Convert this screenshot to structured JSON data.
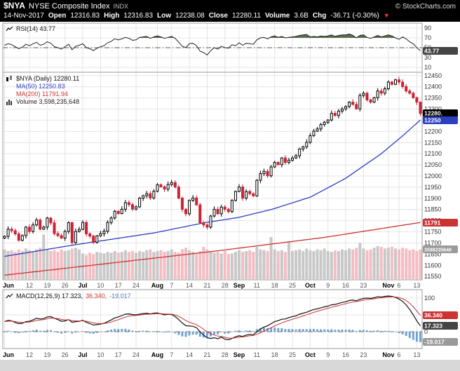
{
  "header": {
    "symbol": "$NYA",
    "name": "NYSE Composite Index",
    "exchange": "INDX",
    "copyright": "© StockCharts.com",
    "date": "14-Nov-2017",
    "down_arrow": "▼",
    "fields": [
      {
        "label": "Open",
        "value": "12316.83"
      },
      {
        "label": "High",
        "value": "12316.83"
      },
      {
        "label": "Low",
        "value": "12238.08"
      },
      {
        "label": "Close",
        "value": "12280.11"
      },
      {
        "label": "Volume",
        "value": "3.6B"
      },
      {
        "label": "Chg",
        "value": "-36.71 (-0.30%)"
      }
    ]
  },
  "rsi": {
    "legend": "RSI(14) 43.77",
    "badge": "43.77"
  },
  "main": {
    "legend_price": "$NYA (Daily) 12280.11",
    "legend_ma50": "MA(50) 12250.83",
    "legend_ma200": "MA(200) 11791.94",
    "legend_volume": "Volume 3,598,235,648",
    "badge_price": "12280.",
    "badge_ma50": "12250",
    "badge_ma200": "11791",
    "badge_volume": "3598235648"
  },
  "macd": {
    "legend": "MACD(12,26,9) 17.323,",
    "legend_signal": "36.340,",
    "legend_hist": "-19.017",
    "badge_macd": "17.323",
    "badge_signal": "36.340",
    "badge_hist": "-19.017"
  },
  "colors": {
    "grid": "#e4e4e4",
    "border": "#999999",
    "ma50": "#2b3fbf",
    "ma200": "#cc3333",
    "candle_down": "#cc2233",
    "volume_up": "#c8c8c8",
    "volume_down": "#f3bdc3",
    "macd_hist": "#73a3d6",
    "macd_hist_text": "#4a7ab0",
    "rsi_fill": "#5c6b51",
    "badge_dark": "#444444",
    "badge_gray": "#9a9a9a",
    "chg_arrow": "#ff3333"
  },
  "chart_data": [
    {
      "id": "rsi",
      "type": "line",
      "title": "RSI(14)",
      "last": 43.77,
      "ylim": [
        0,
        100
      ],
      "yticks": [
        90,
        70,
        50,
        30,
        10
      ],
      "bands": {
        "over": 70,
        "mid": 50,
        "under": 30
      },
      "values": [
        55,
        58,
        56,
        52,
        48,
        51,
        57,
        54,
        58,
        61,
        55,
        57,
        62,
        59,
        52,
        50,
        47,
        52,
        57,
        46,
        53,
        55,
        58,
        50,
        48,
        44,
        49,
        52,
        54,
        60,
        63,
        68,
        66,
        68,
        71,
        69,
        65,
        66,
        71,
        72,
        73,
        69,
        72,
        74,
        72,
        69,
        71,
        73,
        69,
        61,
        53,
        50,
        58,
        59,
        54,
        43,
        40,
        35,
        44,
        50,
        47,
        53,
        50,
        49,
        56,
        54,
        60,
        55,
        59,
        58,
        57,
        66,
        70,
        71,
        68,
        72,
        74,
        71,
        73,
        70,
        71,
        72,
        73,
        75,
        76,
        77,
        72,
        73,
        72,
        74,
        73,
        74,
        76,
        73,
        75,
        76,
        76,
        78,
        75,
        70,
        75,
        76,
        71,
        69,
        72,
        75,
        72,
        74,
        76,
        74,
        70,
        67,
        72,
        68,
        62,
        58,
        50,
        43.77
      ]
    },
    {
      "id": "price",
      "type": "candlestick",
      "title": "$NYA NYSE Composite Index (Daily) with MA(50), MA(200) and Volume",
      "last_close": 12280.11,
      "ma50_last": 12250.83,
      "ma200_last": 11791.94,
      "volume_last": "3,598,235,648",
      "ylim": [
        11535,
        12465
      ],
      "yticks": [
        12450,
        12400,
        12350,
        12300,
        12250,
        12200,
        12150,
        12100,
        12050,
        12000,
        11950,
        11900,
        11850,
        11800,
        11750,
        11700,
        11650,
        11600,
        11550
      ],
      "first_open": 11722,
      "closes": [
        11730,
        11762,
        11755,
        11741,
        11712,
        11733,
        11771,
        11752,
        11781,
        11803,
        11762,
        11771,
        11812,
        11790,
        11742,
        11733,
        11722,
        11752,
        11791,
        11702,
        11752,
        11761,
        11792,
        11741,
        11731,
        11703,
        11732,
        11742,
        11753,
        11792,
        11812,
        11842,
        11832,
        11851,
        11881,
        11872,
        11852,
        11862,
        11901,
        11912,
        11921,
        11902,
        11932,
        11961,
        11952,
        11941,
        11962,
        11971,
        11951,
        11901,
        11851,
        11831,
        11891,
        11902,
        11871,
        11791,
        11781,
        11771,
        11821,
        11851,
        11831,
        11861,
        11851,
        11841,
        11891,
        11931,
        11951,
        11901,
        11931,
        11921,
        11911,
        11981,
        12011,
        12021,
        12001,
        12041,
        12061,
        12051,
        12081,
        12061,
        12071,
        12081,
        12091,
        12121,
        12131,
        12151,
        12181,
        12201,
        12211,
        12231,
        12241,
        12251,
        12281,
        12271,
        12291,
        12301,
        12311,
        12331,
        12321,
        12301,
        12361,
        12371,
        12341,
        12331,
        12351,
        12381,
        12371,
        12391,
        12421,
        12411,
        12431,
        12421,
        12401,
        12381,
        12371,
        12351,
        12331,
        12280.11
      ],
      "volumes_billions": [
        3.6,
        3.4,
        3.5,
        3.3,
        3.6,
        3.4,
        3.7,
        3.5,
        3.4,
        3.6,
        3.8,
        5.4,
        3.6,
        3.4,
        3.5,
        3.3,
        3.6,
        3.4,
        3.5,
        3.7,
        3.8,
        3.6,
        3.1,
        2.9,
        3.2,
        3.0,
        3.3,
        3.2,
        3.1,
        3.3,
        3.2,
        3.4,
        3.2,
        3.3,
        3.5,
        3.3,
        3.4,
        3.2,
        3.4,
        3.3,
        3.5,
        3.6,
        3.3,
        3.4,
        3.5,
        3.3,
        3.4,
        3.6,
        3.3,
        3.2,
        3.6,
        3.8,
        3.5,
        3.3,
        3.2,
        3.4,
        3.9,
        3.6,
        3.4,
        3.2,
        3.3,
        3.1,
        3.4,
        3.0,
        3.1,
        3.3,
        3.5,
        3.3,
        3.4,
        3.5,
        3.3,
        3.9,
        3.6,
        3.5,
        3.4,
        5.1,
        3.6,
        3.4,
        3.5,
        3.3,
        4.6,
        3.4,
        3.5,
        3.6,
        3.4,
        3.7,
        3.5,
        3.4,
        3.6,
        3.5,
        3.7,
        3.4,
        3.3,
        3.5,
        3.4,
        3.6,
        3.5,
        3.7,
        3.6,
        3.8,
        4.4,
        3.7,
        3.5,
        3.6,
        3.8,
        4.0,
        3.9,
        3.7,
        3.8,
        3.9,
        3.7,
        3.6,
        3.8,
        3.7,
        3.5,
        3.6,
        3.4,
        3.6
      ],
      "volume_scale_max": 5.6,
      "ma50_points": [
        [
          0,
          11640
        ],
        [
          21,
          11695
        ],
        [
          42,
          11745
        ],
        [
          56,
          11790
        ],
        [
          66,
          11815
        ],
        [
          75,
          11850
        ],
        [
          86,
          11905
        ],
        [
          96,
          11990
        ],
        [
          106,
          12100
        ],
        [
          112,
          12180
        ],
        [
          117,
          12251
        ]
      ],
      "ma200_points": [
        [
          0,
          11556
        ],
        [
          30,
          11610
        ],
        [
          60,
          11665
        ],
        [
          90,
          11725
        ],
        [
          117,
          11792
        ]
      ],
      "xticks": [
        {
          "l": "Jun",
          "i": 0,
          "b": 1
        },
        {
          "l": "12",
          "i": 7
        },
        {
          "l": "19",
          "i": 12
        },
        {
          "l": "26",
          "i": 17
        },
        {
          "l": "Jul",
          "i": 22,
          "b": 1
        },
        {
          "l": "10",
          "i": 27
        },
        {
          "l": "17",
          "i": 32
        },
        {
          "l": "24",
          "i": 37
        },
        {
          "l": "Aug",
          "i": 43,
          "b": 1
        },
        {
          "l": "7",
          "i": 47
        },
        {
          "l": "14",
          "i": 52
        },
        {
          "l": "21",
          "i": 57
        },
        {
          "l": "28",
          "i": 62
        },
        {
          "l": "Sep",
          "i": 66,
          "b": 1
        },
        {
          "l": "11",
          "i": 71
        },
        {
          "l": "18",
          "i": 76
        },
        {
          "l": "25",
          "i": 81
        },
        {
          "l": "Oct",
          "i": 86,
          "b": 1
        },
        {
          "l": "9",
          "i": 91
        },
        {
          "l": "16",
          "i": 96
        },
        {
          "l": "23",
          "i": 101
        },
        {
          "l": "Nov",
          "i": 108,
          "b": 1
        },
        {
          "l": "6",
          "i": 111
        },
        {
          "l": "13",
          "i": 116
        }
      ]
    },
    {
      "id": "macd",
      "type": "line+histogram",
      "title": "MACD(12,26,9)",
      "last_macd": 17.323,
      "last_signal": 36.34,
      "last_hist": -19.017,
      "ylim": [
        -50,
        125
      ],
      "yticks": [
        100,
        50,
        0
      ],
      "macd": [
        30,
        34,
        32,
        27,
        24,
        25,
        30,
        31,
        35,
        40,
        38,
        39,
        44,
        45,
        40,
        36,
        31,
        32,
        36,
        28,
        30,
        31,
        34,
        28,
        24,
        20,
        21,
        23,
        25,
        30,
        35,
        41,
        44,
        48,
        52,
        53,
        51,
        50,
        52,
        54,
        55,
        53,
        55,
        56,
        53,
        50,
        52,
        51,
        45,
        36,
        26,
        18,
        17,
        16,
        12,
        0,
        -10,
        -18,
        -20,
        -18,
        -21,
        -16,
        -22,
        -24,
        -20,
        -15,
        -12,
        -14,
        -10,
        -8,
        -9,
        0,
        8,
        14,
        18,
        24,
        30,
        33,
        37,
        38,
        42,
        45,
        47,
        52,
        55,
        58,
        62,
        66,
        68,
        71,
        74,
        76,
        80,
        81,
        84,
        87,
        89,
        93,
        94,
        92,
        96,
        99,
        100,
        99,
        101,
        104,
        103,
        105,
        106,
        105,
        102,
        97,
        90,
        80,
        66,
        50,
        32,
        17.3
      ]
    }
  ]
}
